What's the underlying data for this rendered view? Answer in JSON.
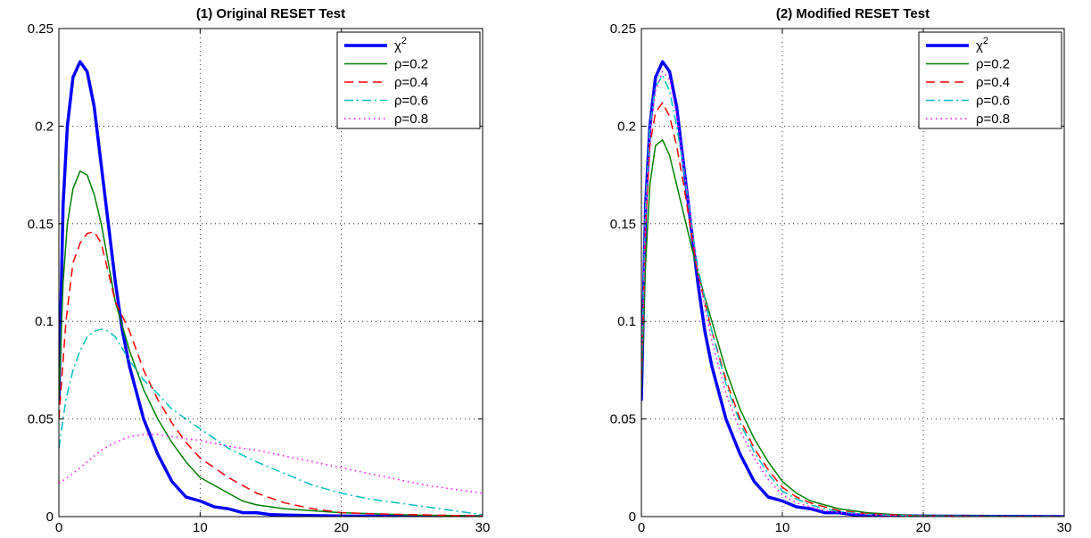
{
  "chart_data": [
    {
      "type": "line",
      "title": "(1) Original RESET Test",
      "xlabel": "",
      "ylabel": "",
      "xlim": [
        0,
        30
      ],
      "ylim": [
        0,
        0.25
      ],
      "xticks": [
        0,
        10,
        20,
        30
      ],
      "yticks": [
        0,
        0.05,
        0.1,
        0.15,
        0.2,
        0.25
      ],
      "xtick_labels": [
        "0",
        "10",
        "20",
        "30"
      ],
      "ytick_labels": [
        "0",
        "0.05",
        "0.1",
        "0.15",
        "0.2",
        "0.25"
      ],
      "grid": true,
      "legend_position": "top-right",
      "series": [
        {
          "name": "χ",
          "name_sup": "2",
          "color": "#0000ff",
          "dash": "solid",
          "width": 3.5,
          "x": [
            0,
            0.3,
            0.6,
            1,
            1.5,
            2,
            2.5,
            3,
            3.5,
            4,
            4.5,
            5,
            6,
            7,
            8,
            9,
            10,
            11,
            12,
            13,
            14,
            15,
            16,
            18,
            20,
            25,
            30
          ],
          "y": [
            0.06,
            0.16,
            0.2,
            0.225,
            0.233,
            0.228,
            0.21,
            0.18,
            0.15,
            0.12,
            0.095,
            0.077,
            0.05,
            0.032,
            0.018,
            0.01,
            0.008,
            0.005,
            0.004,
            0.002,
            0.002,
            0.001,
            0.0008,
            0.0005,
            0.0003,
            0.0001,
            0
          ]
        },
        {
          "name": "ρ=0.2",
          "color": "#008000",
          "dash": "solid",
          "width": 1.5,
          "x": [
            0,
            0.3,
            0.6,
            1,
            1.5,
            2,
            2.5,
            3,
            3.5,
            4,
            5,
            6,
            7,
            8,
            9,
            10,
            11,
            12,
            13,
            14,
            16,
            18,
            20,
            25,
            30
          ],
          "y": [
            0.06,
            0.12,
            0.15,
            0.168,
            0.177,
            0.175,
            0.165,
            0.15,
            0.13,
            0.11,
            0.085,
            0.065,
            0.05,
            0.038,
            0.028,
            0.02,
            0.016,
            0.012,
            0.008,
            0.006,
            0.004,
            0.003,
            0.002,
            0.0008,
            0.0003
          ]
        },
        {
          "name": "ρ=0.4",
          "color": "#ff0000",
          "dash": "dashed",
          "width": 1.5,
          "x": [
            0,
            0.5,
            1,
            1.5,
            2,
            2.5,
            3,
            3.5,
            4,
            5,
            6,
            7,
            8,
            9,
            10,
            12,
            14,
            16,
            18,
            20,
            22,
            25,
            30
          ],
          "y": [
            0.05,
            0.1,
            0.13,
            0.14,
            0.145,
            0.146,
            0.14,
            0.125,
            0.11,
            0.095,
            0.075,
            0.06,
            0.048,
            0.038,
            0.03,
            0.02,
            0.012,
            0.007,
            0.004,
            0.002,
            0.0015,
            0.001,
            0.0003
          ]
        },
        {
          "name": "ρ=0.6",
          "color": "#00bfbf",
          "dash": "dashdot",
          "width": 1.5,
          "x": [
            0,
            0.5,
            1,
            1.5,
            2,
            2.5,
            3,
            3.5,
            4,
            5,
            6,
            7,
            8,
            9,
            10,
            11,
            12,
            14,
            16,
            18,
            20,
            22,
            25,
            28,
            30
          ],
          "y": [
            0.035,
            0.06,
            0.075,
            0.085,
            0.092,
            0.095,
            0.096,
            0.095,
            0.092,
            0.08,
            0.07,
            0.063,
            0.055,
            0.05,
            0.045,
            0.04,
            0.035,
            0.028,
            0.022,
            0.016,
            0.012,
            0.009,
            0.006,
            0.003,
            0.001
          ]
        },
        {
          "name": "ρ=0.8",
          "color": "#ff00ff",
          "dash": "dotted",
          "width": 1.5,
          "x": [
            0,
            1,
            2,
            3,
            4,
            5,
            6,
            7,
            8,
            9,
            10,
            12,
            14,
            16,
            18,
            20,
            22,
            24,
            26,
            28,
            30
          ],
          "y": [
            0.017,
            0.022,
            0.028,
            0.034,
            0.038,
            0.041,
            0.042,
            0.042,
            0.041,
            0.04,
            0.039,
            0.036,
            0.034,
            0.031,
            0.028,
            0.025,
            0.022,
            0.019,
            0.016,
            0.014,
            0.012
          ]
        }
      ]
    },
    {
      "type": "line",
      "title": "(2) Modified RESET Test",
      "xlabel": "",
      "ylabel": "",
      "xlim": [
        0,
        30
      ],
      "ylim": [
        0,
        0.25
      ],
      "xticks": [
        0,
        10,
        20,
        30
      ],
      "yticks": [
        0,
        0.05,
        0.1,
        0.15,
        0.2,
        0.25
      ],
      "xtick_labels": [
        "0",
        "10",
        "20",
        "30"
      ],
      "ytick_labels": [
        "0",
        "0.05",
        "0.1",
        "0.15",
        "0.2",
        "0.25"
      ],
      "grid": true,
      "legend_position": "top-right",
      "series": [
        {
          "name": "χ",
          "name_sup": "2",
          "color": "#0000ff",
          "dash": "solid",
          "width": 3.5,
          "x": [
            0,
            0.3,
            0.6,
            1,
            1.5,
            2,
            2.5,
            3,
            3.5,
            4,
            4.5,
            5,
            6,
            7,
            8,
            9,
            10,
            11,
            12,
            13,
            14,
            15,
            16,
            18,
            20,
            25,
            30
          ],
          "y": [
            0.06,
            0.16,
            0.2,
            0.225,
            0.233,
            0.228,
            0.21,
            0.18,
            0.15,
            0.12,
            0.095,
            0.077,
            0.05,
            0.032,
            0.018,
            0.01,
            0.008,
            0.005,
            0.004,
            0.002,
            0.002,
            0.001,
            0.0008,
            0.0005,
            0.0003,
            0.0001,
            0
          ]
        },
        {
          "name": "ρ=0.2",
          "color": "#008000",
          "dash": "solid",
          "width": 1.5,
          "x": [
            0,
            0.3,
            0.6,
            1,
            1.5,
            2,
            2.5,
            3,
            3.5,
            4,
            5,
            6,
            7,
            8,
            9,
            10,
            11,
            12,
            13,
            14,
            16,
            18,
            20,
            25,
            30
          ],
          "y": [
            0.065,
            0.13,
            0.17,
            0.19,
            0.193,
            0.185,
            0.17,
            0.155,
            0.14,
            0.125,
            0.1,
            0.075,
            0.055,
            0.04,
            0.028,
            0.018,
            0.012,
            0.008,
            0.006,
            0.004,
            0.002,
            0.001,
            0.0005,
            0.0002,
            0
          ]
        },
        {
          "name": "ρ=0.4",
          "color": "#ff0000",
          "dash": "dashed",
          "width": 1.5,
          "x": [
            0,
            0.3,
            0.6,
            1,
            1.5,
            2,
            2.5,
            3,
            3.5,
            4,
            5,
            6,
            7,
            8,
            9,
            10,
            11,
            12,
            13,
            14,
            16,
            18,
            20,
            25,
            30
          ],
          "y": [
            0.07,
            0.15,
            0.19,
            0.207,
            0.212,
            0.205,
            0.19,
            0.17,
            0.147,
            0.125,
            0.095,
            0.07,
            0.05,
            0.035,
            0.024,
            0.015,
            0.01,
            0.007,
            0.005,
            0.003,
            0.0015,
            0.0008,
            0.0004,
            0.0001,
            0
          ]
        },
        {
          "name": "ρ=0.6",
          "color": "#00bfbf",
          "dash": "dashdot",
          "width": 1.5,
          "x": [
            0,
            0.3,
            0.6,
            1,
            1.5,
            2,
            2.5,
            3,
            3.5,
            4,
            5,
            6,
            7,
            8,
            9,
            10,
            11,
            12,
            13,
            14,
            16,
            18,
            20,
            25,
            30
          ],
          "y": [
            0.075,
            0.16,
            0.2,
            0.22,
            0.226,
            0.218,
            0.2,
            0.178,
            0.152,
            0.128,
            0.095,
            0.068,
            0.048,
            0.033,
            0.022,
            0.013,
            0.009,
            0.006,
            0.004,
            0.0025,
            0.0012,
            0.0006,
            0.0003,
            0.0001,
            0
          ]
        },
        {
          "name": "ρ=0.8",
          "color": "#ff00ff",
          "dash": "dotted",
          "width": 1.5,
          "x": [
            0,
            0.3,
            0.6,
            1,
            1.5,
            2,
            2.5,
            3,
            3.5,
            4,
            5,
            6,
            7,
            8,
            9,
            10,
            11,
            12,
            13,
            14,
            16,
            18,
            20,
            25,
            30
          ],
          "y": [
            0.07,
            0.155,
            0.195,
            0.218,
            0.228,
            0.224,
            0.206,
            0.18,
            0.152,
            0.125,
            0.09,
            0.063,
            0.044,
            0.03,
            0.019,
            0.011,
            0.007,
            0.005,
            0.003,
            0.002,
            0.001,
            0.0005,
            0.0002,
            0,
            0
          ]
        }
      ]
    }
  ]
}
